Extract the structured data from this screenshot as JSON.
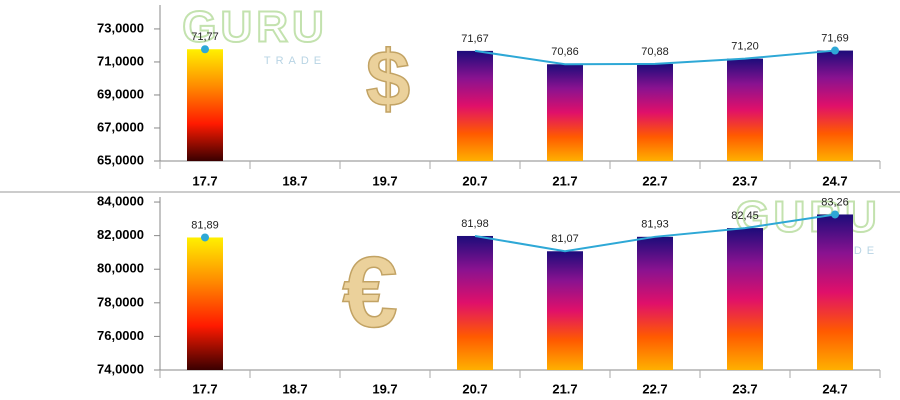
{
  "chart_data": [
    {
      "type": "bar-line",
      "watermark": "GURU",
      "watermark_sub": "TRADE",
      "symbol": "$",
      "categories": [
        "17.7",
        "18.7",
        "19.7",
        "20.7",
        "21.7",
        "22.7",
        "23.7",
        "24.7"
      ],
      "values": [
        71.77,
        null,
        null,
        71.67,
        70.86,
        70.88,
        71.2,
        71.69
      ],
      "value_labels": [
        "71,77",
        null,
        null,
        "71,67",
        "70,86",
        "70,88",
        "71,20",
        "71,69"
      ],
      "bar_gradients": [
        "gold",
        null,
        null,
        "blue",
        "blue",
        "blue",
        "blue",
        "blue"
      ],
      "gradients": {
        "gold": [
          "#fff000",
          "#ff8a00",
          "#ff1a00",
          "#3a0000"
        ],
        "blue": [
          "#1c0c7a",
          "#8a1290",
          "#e0106a",
          "#ff5a00",
          "#ffb000"
        ]
      },
      "line_color": "#2ea8d6",
      "ylim": [
        65,
        74.45
      ],
      "yticks": [
        {
          "value": 65,
          "label": "65,0000"
        },
        {
          "value": 67,
          "label": "67,0000"
        },
        {
          "value": 69,
          "label": "69,0000"
        },
        {
          "value": 71,
          "label": "71,0000"
        },
        {
          "value": 73,
          "label": "73,0000"
        }
      ]
    },
    {
      "type": "bar-line",
      "watermark": "GURU",
      "watermark_sub": "TRADE",
      "symbol": "€",
      "categories": [
        "17.7",
        "18.7",
        "19.7",
        "20.7",
        "21.7",
        "22.7",
        "23.7",
        "24.7"
      ],
      "values": [
        81.89,
        null,
        null,
        81.98,
        81.07,
        81.93,
        82.45,
        83.26
      ],
      "value_labels": [
        "81,89",
        null,
        null,
        "81,98",
        "81,07",
        "81,93",
        "82,45",
        "83,26"
      ],
      "bar_gradients": [
        "gold",
        null,
        null,
        "blue",
        "blue",
        "blue",
        "blue",
        "blue"
      ],
      "gradients": {
        "gold": [
          "#fff000",
          "#ff8a00",
          "#ff1a00",
          "#3a0000"
        ],
        "blue": [
          "#1c0c7a",
          "#8a1290",
          "#e0106a",
          "#ff5a00",
          "#ffb000"
        ]
      },
      "line_color": "#2ea8d6",
      "ylim": [
        74,
        84.3
      ],
      "yticks": [
        {
          "value": 74,
          "label": "74,0000"
        },
        {
          "value": 76,
          "label": "76,0000"
        },
        {
          "value": 78,
          "label": "78,0000"
        },
        {
          "value": 80,
          "label": "80,0000"
        },
        {
          "value": 82,
          "label": "82,0000"
        },
        {
          "value": 84,
          "label": "84,0000"
        }
      ]
    }
  ]
}
